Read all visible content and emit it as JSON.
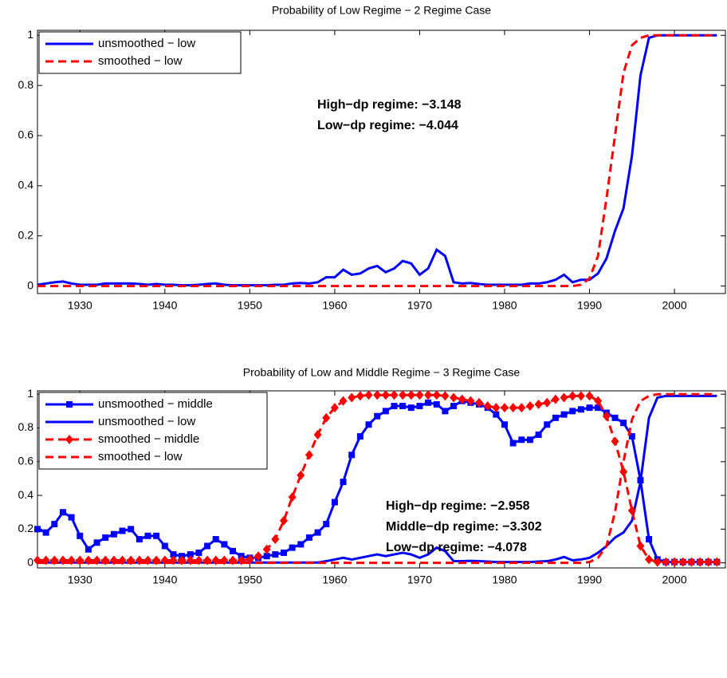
{
  "chart_data": [
    {
      "type": "line",
      "title": "Probability of Low Regime − 2 Regime Case",
      "x": [
        1925,
        1926,
        1927,
        1928,
        1929,
        1930,
        1931,
        1932,
        1933,
        1934,
        1935,
        1936,
        1937,
        1938,
        1939,
        1940,
        1941,
        1942,
        1943,
        1944,
        1945,
        1946,
        1947,
        1948,
        1949,
        1950,
        1951,
        1952,
        1953,
        1954,
        1955,
        1956,
        1957,
        1958,
        1959,
        1960,
        1961,
        1962,
        1963,
        1964,
        1965,
        1966,
        1967,
        1968,
        1969,
        1970,
        1971,
        1972,
        1973,
        1974,
        1975,
        1976,
        1977,
        1978,
        1979,
        1980,
        1981,
        1982,
        1983,
        1984,
        1985,
        1986,
        1987,
        1988,
        1989,
        1990,
        1991,
        1992,
        1993,
        1994,
        1995,
        1996,
        1997,
        1998,
        1999,
        2000,
        2001,
        2002,
        2003,
        2004,
        2005
      ],
      "series": [
        {
          "name": "unsmoothed − low",
          "color": "#0000ff",
          "linestyle": "solid",
          "marker": "none",
          "values": [
            0.005,
            0.01,
            0.015,
            0.018,
            0.01,
            0.005,
            0.005,
            0.005,
            0.01,
            0.01,
            0.01,
            0.01,
            0.008,
            0.005,
            0.008,
            0.005,
            0.005,
            0.003,
            0.003,
            0.005,
            0.008,
            0.01,
            0.005,
            0.003,
            0.003,
            0.003,
            0.003,
            0.003,
            0.005,
            0.005,
            0.01,
            0.012,
            0.01,
            0.015,
            0.035,
            0.035,
            0.065,
            0.045,
            0.05,
            0.07,
            0.08,
            0.055,
            0.07,
            0.1,
            0.09,
            0.045,
            0.07,
            0.145,
            0.12,
            0.015,
            0.01,
            0.012,
            0.008,
            0.005,
            0.005,
            0.005,
            0.005,
            0.005,
            0.01,
            0.01,
            0.015,
            0.025,
            0.045,
            0.015,
            0.025,
            0.025,
            0.05,
            0.11,
            0.22,
            0.31,
            0.52,
            0.84,
            0.99,
            1,
            1,
            1,
            1,
            1,
            1,
            1,
            1
          ]
        },
        {
          "name": "smoothed − low",
          "color": "#ff0000",
          "linestyle": "dashed",
          "marker": "none",
          "values": [
            0,
            0,
            0,
            0,
            0,
            0,
            0,
            0,
            0,
            0,
            0,
            0,
            0,
            0,
            0,
            0,
            0,
            0,
            0,
            0,
            0,
            0,
            0,
            0,
            0,
            0,
            0,
            0,
            0,
            0,
            0,
            0,
            0,
            0,
            0,
            0,
            0,
            0,
            0,
            0,
            0,
            0,
            0,
            0,
            0,
            0,
            0,
            0,
            0,
            0,
            0,
            0,
            0,
            0,
            0,
            0,
            0,
            0,
            0,
            0,
            0,
            0,
            0,
            0,
            0.005,
            0.03,
            0.12,
            0.35,
            0.6,
            0.85,
            0.96,
            0.99,
            1,
            1,
            1,
            1,
            1,
            1,
            1,
            1,
            1
          ]
        }
      ],
      "annotations": [
        "High−dp regime: −3.148",
        "Low−dp regime: −4.044"
      ],
      "xlim": [
        1925,
        2006
      ],
      "ylim": [
        -0.03,
        1.02
      ],
      "xticks": [
        1930,
        1940,
        1950,
        1960,
        1970,
        1980,
        1990,
        2000
      ],
      "yticks": [
        0,
        0.2,
        0.4,
        0.6,
        0.8,
        1
      ],
      "legend": "upper left"
    },
    {
      "type": "line",
      "title": "Probability of Low and Middle Regime − 3 Regime Case",
      "x": [
        1925,
        1926,
        1927,
        1928,
        1929,
        1930,
        1931,
        1932,
        1933,
        1934,
        1935,
        1936,
        1937,
        1938,
        1939,
        1940,
        1941,
        1942,
        1943,
        1944,
        1945,
        1946,
        1947,
        1948,
        1949,
        1950,
        1951,
        1952,
        1953,
        1954,
        1955,
        1956,
        1957,
        1958,
        1959,
        1960,
        1961,
        1962,
        1963,
        1964,
        1965,
        1966,
        1967,
        1968,
        1969,
        1970,
        1971,
        1972,
        1973,
        1974,
        1975,
        1976,
        1977,
        1978,
        1979,
        1980,
        1981,
        1982,
        1983,
        1984,
        1985,
        1986,
        1987,
        1988,
        1989,
        1990,
        1991,
        1992,
        1993,
        1994,
        1995,
        1996,
        1997,
        1998,
        1999,
        2000,
        2001,
        2002,
        2003,
        2004,
        2005
      ],
      "series": [
        {
          "name": "unsmoothed − middle",
          "color": "#0000ff",
          "linestyle": "solid",
          "marker": "square",
          "values": [
            0.2,
            0.18,
            0.23,
            0.3,
            0.27,
            0.16,
            0.08,
            0.12,
            0.15,
            0.17,
            0.19,
            0.2,
            0.14,
            0.16,
            0.16,
            0.1,
            0.05,
            0.04,
            0.05,
            0.06,
            0.1,
            0.14,
            0.11,
            0.07,
            0.04,
            0.03,
            0.03,
            0.04,
            0.05,
            0.06,
            0.09,
            0.11,
            0.15,
            0.18,
            0.23,
            0.36,
            0.48,
            0.64,
            0.75,
            0.82,
            0.87,
            0.9,
            0.93,
            0.93,
            0.92,
            0.93,
            0.95,
            0.94,
            0.9,
            0.93,
            0.96,
            0.95,
            0.94,
            0.92,
            0.88,
            0.82,
            0.71,
            0.73,
            0.73,
            0.76,
            0.82,
            0.86,
            0.88,
            0.9,
            0.91,
            0.92,
            0.92,
            0.89,
            0.86,
            0.83,
            0.75,
            0.49,
            0.14,
            0.02,
            0.005,
            0.005,
            0.005,
            0.005,
            0.005,
            0.005,
            0.005
          ]
        },
        {
          "name": "unsmoothed − low",
          "color": "#0000ff",
          "linestyle": "solid",
          "marker": "none",
          "values": [
            0.002,
            0.002,
            0.002,
            0.002,
            0.002,
            0.002,
            0.002,
            0.002,
            0.002,
            0.002,
            0.002,
            0.002,
            0.002,
            0.002,
            0.002,
            0.002,
            0.002,
            0.002,
            0.002,
            0.002,
            0.002,
            0.002,
            0.002,
            0.002,
            0.002,
            0.002,
            0.002,
            0.002,
            0.002,
            0.002,
            0.002,
            0.002,
            0.002,
            0.002,
            0.01,
            0.02,
            0.03,
            0.02,
            0.03,
            0.04,
            0.05,
            0.04,
            0.05,
            0.06,
            0.05,
            0.03,
            0.05,
            0.09,
            0.07,
            0.01,
            0.01,
            0.012,
            0.01,
            0.008,
            0.005,
            0.005,
            0.005,
            0.005,
            0.005,
            0.008,
            0.01,
            0.02,
            0.035,
            0.015,
            0.02,
            0.03,
            0.06,
            0.1,
            0.15,
            0.18,
            0.25,
            0.48,
            0.86,
            0.98,
            0.99,
            0.99,
            0.99,
            0.99,
            0.99,
            0.99,
            0.99
          ]
        },
        {
          "name": "smoothed − middle",
          "color": "#ff0000",
          "linestyle": "dashed",
          "marker": "diamond",
          "values": [
            0.015,
            0.015,
            0.015,
            0.015,
            0.015,
            0.015,
            0.015,
            0.015,
            0.015,
            0.015,
            0.015,
            0.015,
            0.015,
            0.015,
            0.015,
            0.015,
            0.015,
            0.015,
            0.015,
            0.015,
            0.015,
            0.015,
            0.015,
            0.015,
            0.015,
            0.02,
            0.04,
            0.08,
            0.14,
            0.25,
            0.39,
            0.52,
            0.64,
            0.76,
            0.86,
            0.92,
            0.96,
            0.98,
            0.99,
            0.995,
            0.995,
            0.995,
            0.995,
            0.995,
            0.995,
            0.995,
            0.995,
            0.995,
            0.99,
            0.98,
            0.97,
            0.96,
            0.95,
            0.93,
            0.92,
            0.92,
            0.92,
            0.92,
            0.93,
            0.94,
            0.95,
            0.97,
            0.98,
            0.99,
            0.99,
            0.99,
            0.96,
            0.87,
            0.72,
            0.54,
            0.31,
            0.1,
            0.02,
            0.005,
            0.005,
            0.005,
            0.005,
            0.005,
            0.005,
            0.005,
            0.005
          ]
        },
        {
          "name": "smoothed − low",
          "color": "#ff0000",
          "linestyle": "dashed",
          "marker": "none",
          "values": [
            0,
            0,
            0,
            0,
            0,
            0,
            0,
            0,
            0,
            0,
            0,
            0,
            0,
            0,
            0,
            0,
            0,
            0,
            0,
            0,
            0,
            0,
            0,
            0,
            0,
            0,
            0,
            0,
            0,
            0,
            0,
            0,
            0,
            0,
            0,
            0,
            0,
            0,
            0,
            0,
            0,
            0,
            0,
            0,
            0,
            0,
            0,
            0,
            0,
            0,
            0,
            0,
            0,
            0,
            0,
            0,
            0,
            0,
            0,
            0,
            0,
            0,
            0,
            0,
            0,
            0.005,
            0.03,
            0.1,
            0.3,
            0.6,
            0.85,
            0.96,
            0.99,
            1,
            1,
            1,
            1,
            1,
            1,
            1,
            1
          ]
        }
      ],
      "annotations": [
        "High−dp regime: −2.958",
        "Middle−dp regime: −3.302",
        "Low−dp regime: −4.078"
      ],
      "xlim": [
        1925,
        2006
      ],
      "ylim": [
        -0.03,
        1.02
      ],
      "xticks": [
        1930,
        1940,
        1950,
        1960,
        1970,
        1980,
        1990,
        2000
      ],
      "yticks": [
        0,
        0.2,
        0.4,
        0.6,
        0.8,
        1
      ],
      "legend": "upper left"
    }
  ]
}
